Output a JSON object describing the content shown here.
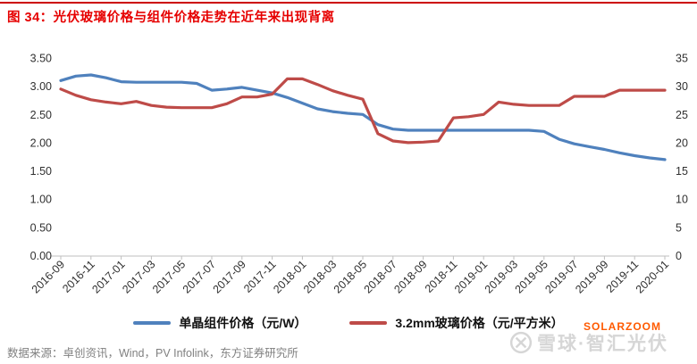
{
  "title": "图 34：光伏玻璃价格与组件价格走势在近年来出现背离",
  "source": "数据来源：卓创资讯，Wind，PV Infolink，东方证券研究所",
  "watermark": {
    "logo": "xueqiu-circle-x",
    "gray_text": "雪球·智汇光伏",
    "orange_text": "SOLARZOOM"
  },
  "colors": {
    "title_text": "#e60000",
    "top_rule": "#cc0000",
    "module_line": "#4F81BD",
    "glass_line": "#BE4B48",
    "axis_text": "#303030",
    "axis_line": "#bfbfbf",
    "source_text": "#808080",
    "watermark_gray": "#cccccc",
    "watermark_orange": "#ff5a00"
  },
  "chart_data": {
    "type": "line",
    "title": "图 34：光伏玻璃价格与组件价格走势在近年来出现背离",
    "grid": false,
    "legend_position": "bottom",
    "x": [
      "2016-09",
      "2016-10",
      "2016-11",
      "2016-12",
      "2017-01",
      "2017-02",
      "2017-03",
      "2017-04",
      "2017-05",
      "2017-06",
      "2017-07",
      "2017-08",
      "2017-09",
      "2017-10",
      "2017-11",
      "2017-12",
      "2018-01",
      "2018-02",
      "2018-03",
      "2018-04",
      "2018-05",
      "2018-06",
      "2018-07",
      "2018-08",
      "2018-09",
      "2018-10",
      "2018-11",
      "2018-12",
      "2019-01",
      "2019-02",
      "2019-03",
      "2019-04",
      "2019-05",
      "2019-06",
      "2019-07",
      "2019-08",
      "2019-09",
      "2019-10",
      "2019-11",
      "2019-12",
      "2020-01"
    ],
    "x_tick_labels": [
      "2016-09",
      "2016-11",
      "2017-01",
      "2017-03",
      "2017-05",
      "2017-07",
      "2017-09",
      "2017-11",
      "2018-01",
      "2018-03",
      "2018-05",
      "2018-07",
      "2018-09",
      "2018-11",
      "2019-01",
      "2019-03",
      "2019-05",
      "2019-07",
      "2019-09",
      "2019-11",
      "2020-01"
    ],
    "left_axis": {
      "min": 0,
      "max": 3.5,
      "ticks": [
        "0.00",
        "0.50",
        "1.00",
        "1.50",
        "2.00",
        "2.50",
        "3.00",
        "3.50"
      ]
    },
    "right_axis": {
      "min": 0,
      "max": 35,
      "ticks": [
        "0",
        "5",
        "10",
        "15",
        "20",
        "25",
        "30",
        "35"
      ]
    },
    "series": [
      {
        "name": "单晶组件价格（元/W）",
        "axis": "left",
        "unit": "元/W",
        "color": "#4F81BD",
        "values": [
          3.1,
          3.18,
          3.2,
          3.15,
          3.08,
          3.07,
          3.07,
          3.07,
          3.07,
          3.05,
          2.93,
          2.95,
          2.98,
          2.93,
          2.88,
          2.8,
          2.7,
          2.6,
          2.55,
          2.52,
          2.5,
          2.32,
          2.24,
          2.22,
          2.22,
          2.22,
          2.22,
          2.22,
          2.22,
          2.22,
          2.22,
          2.22,
          2.2,
          2.06,
          1.98,
          1.93,
          1.88,
          1.82,
          1.77,
          1.73,
          1.7
        ]
      },
      {
        "name": "3.2mm玻璃价格（元/平方米）",
        "axis": "right",
        "unit": "元/平方米",
        "color": "#BE4B48",
        "values": [
          29.5,
          28.4,
          27.6,
          27.2,
          26.9,
          27.3,
          26.6,
          26.3,
          26.2,
          26.2,
          26.2,
          26.9,
          28.1,
          28.1,
          28.6,
          31.3,
          31.3,
          30.3,
          29.2,
          28.4,
          27.7,
          21.6,
          20.3,
          20.0,
          20.1,
          20.3,
          24.4,
          24.6,
          25.0,
          27.2,
          26.8,
          26.6,
          26.6,
          26.6,
          28.2,
          28.2,
          28.2,
          29.3,
          29.3,
          29.3,
          29.3
        ]
      }
    ]
  }
}
